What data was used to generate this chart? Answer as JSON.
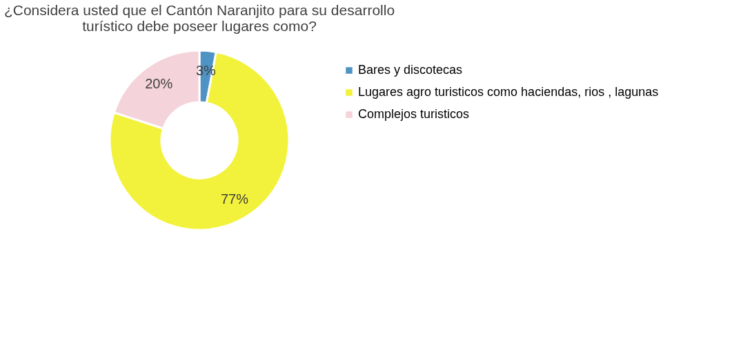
{
  "chart_data": {
    "type": "donut",
    "title": [
      "¿Considera usted que el Cantón Naranjito para su desarrollo",
      "turístico debe poseer lugares como?"
    ],
    "categories": [
      "Bares y discotecas",
      "Lugares agro turisticos como haciendas, rios , lagunas",
      "Complejos turisticos"
    ],
    "values": [
      3,
      77,
      20
    ],
    "colors": [
      "#4f93c4",
      "#f2f23c",
      "#f4d3da"
    ],
    "value_labels": [
      "3%",
      "77%",
      "20%"
    ],
    "legend": "right"
  }
}
